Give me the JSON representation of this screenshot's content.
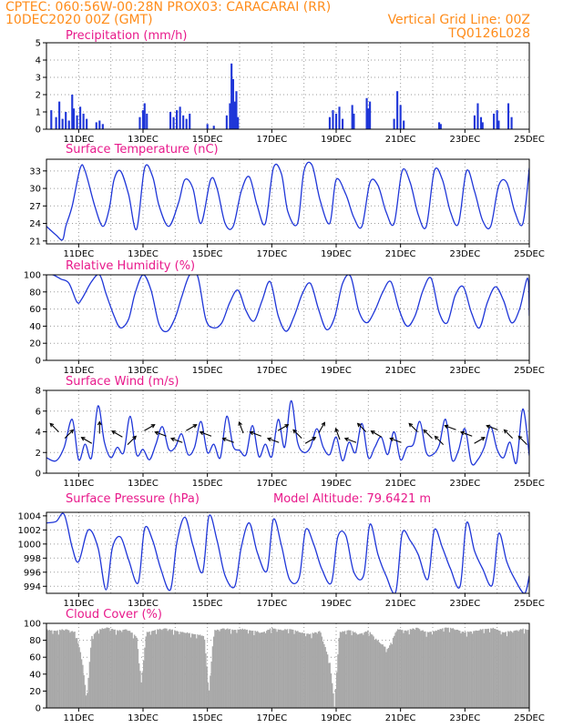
{
  "header": {
    "line1": "CPTEC:   060:56W-00:28N   PROX03: CARACARAI (RR)",
    "line2_left": "10DEC2020 00Z (GMT)",
    "line2_right": "Vertical Grid Line: 00Z",
    "line3_right": "TQ0126L028"
  },
  "colors": {
    "header": "#ff8c1a",
    "title": "#e8198b",
    "line": "#1f36d8",
    "cloud": "#a8a8a8"
  },
  "x_axis_labels": [
    "11DEC",
    "13DEC",
    "15DEC",
    "17DEC",
    "19DEC",
    "21DEC",
    "23DEC",
    "25DEC"
  ],
  "chart_data": [
    {
      "id": "precip",
      "type": "bar",
      "title": "Precipitation (mm/h)",
      "ylim": [
        0,
        5
      ],
      "yticks": [
        "0",
        "1",
        "2",
        "3",
        "4",
        "5"
      ],
      "x_range_days": [
        10,
        25
      ],
      "bars": [
        [
          10.15,
          1.1
        ],
        [
          10.3,
          0.7
        ],
        [
          10.4,
          1.6
        ],
        [
          10.5,
          0.6
        ],
        [
          10.6,
          1.0
        ],
        [
          10.7,
          0.5
        ],
        [
          10.8,
          2.0
        ],
        [
          10.85,
          1.2
        ],
        [
          10.95,
          0.8
        ],
        [
          11.05,
          1.3
        ],
        [
          11.15,
          0.9
        ],
        [
          11.25,
          0.6
        ],
        [
          11.55,
          0.4
        ],
        [
          11.65,
          0.5
        ],
        [
          11.75,
          0.3
        ],
        [
          12.9,
          0.7
        ],
        [
          13.0,
          1.1
        ],
        [
          13.05,
          1.5
        ],
        [
          13.12,
          0.9
        ],
        [
          13.85,
          1.0
        ],
        [
          13.95,
          0.7
        ],
        [
          14.05,
          1.1
        ],
        [
          14.15,
          1.3
        ],
        [
          14.25,
          0.8
        ],
        [
          14.35,
          0.6
        ],
        [
          14.45,
          0.9
        ],
        [
          15.0,
          0.3
        ],
        [
          15.2,
          0.2
        ],
        [
          15.6,
          0.8
        ],
        [
          15.7,
          1.5
        ],
        [
          15.75,
          3.8
        ],
        [
          15.8,
          2.9
        ],
        [
          15.85,
          1.6
        ],
        [
          15.9,
          2.2
        ],
        [
          15.95,
          0.7
        ],
        [
          18.8,
          0.7
        ],
        [
          18.9,
          1.1
        ],
        [
          19.0,
          0.9
        ],
        [
          19.1,
          1.3
        ],
        [
          19.2,
          0.6
        ],
        [
          19.5,
          1.4
        ],
        [
          19.55,
          0.9
        ],
        [
          19.95,
          1.8
        ],
        [
          20.0,
          1.2
        ],
        [
          20.05,
          1.6
        ],
        [
          20.8,
          0.6
        ],
        [
          20.9,
          2.2
        ],
        [
          21.0,
          1.4
        ],
        [
          21.1,
          0.5
        ],
        [
          22.2,
          0.4
        ],
        [
          22.25,
          0.3
        ],
        [
          23.3,
          0.8
        ],
        [
          23.4,
          1.5
        ],
        [
          23.5,
          0.7
        ],
        [
          23.55,
          0.4
        ],
        [
          23.9,
          0.9
        ],
        [
          24.0,
          1.1
        ],
        [
          24.05,
          0.5
        ],
        [
          24.35,
          1.5
        ],
        [
          24.45,
          0.7
        ]
      ]
    },
    {
      "id": "temp",
      "type": "line",
      "title": "Surface Temperature (nC)",
      "ylim": [
        20.5,
        35
      ],
      "yticks": [
        21,
        24,
        27,
        30,
        33
      ],
      "x_range_days": [
        10,
        25
      ],
      "x": [
        10.0,
        10.3,
        10.5,
        10.6,
        10.8,
        11.05,
        11.2,
        11.5,
        11.75,
        11.95,
        12.1,
        12.3,
        12.55,
        12.8,
        13.05,
        13.3,
        13.5,
        13.8,
        14.1,
        14.3,
        14.55,
        14.8,
        15.1,
        15.3,
        15.55,
        15.8,
        16.05,
        16.3,
        16.55,
        16.8,
        17.05,
        17.3,
        17.5,
        17.8,
        18.0,
        18.25,
        18.5,
        18.8,
        19.0,
        19.3,
        19.55,
        19.8,
        20.05,
        20.3,
        20.55,
        20.8,
        21.05,
        21.3,
        21.55,
        21.8,
        22.05,
        22.3,
        22.55,
        22.8,
        23.05,
        23.3,
        23.55,
        23.8,
        24.05,
        24.3,
        24.55,
        24.8,
        25.0
      ],
      "y": [
        23.5,
        22.0,
        21.2,
        23.5,
        27.0,
        33.5,
        33.0,
        27.0,
        23.5,
        26.5,
        31.5,
        33.0,
        29.0,
        23.0,
        33.5,
        32.0,
        27.0,
        23.5,
        27.5,
        31.5,
        30.0,
        24.0,
        31.5,
        30.0,
        24.0,
        23.5,
        29.5,
        32.0,
        27.0,
        24.0,
        33.5,
        32.5,
        26.0,
        24.0,
        33.0,
        34.0,
        28.0,
        24.0,
        31.5,
        29.0,
        25.0,
        23.5,
        31.0,
        30.5,
        26.0,
        24.0,
        33.0,
        31.0,
        25.5,
        23.5,
        33.0,
        31.5,
        26.0,
        24.0,
        33.0,
        29.5,
        24.5,
        23.5,
        30.5,
        31.0,
        26.0,
        24.0,
        33.5
      ]
    },
    {
      "id": "rh",
      "type": "line",
      "title": "Relative Humidity (%)",
      "ylim": [
        0,
        100
      ],
      "yticks": [
        0,
        20,
        40,
        60,
        80,
        100
      ],
      "x_range_days": [
        10,
        25
      ],
      "x": [
        10.0,
        10.2,
        10.45,
        10.7,
        10.95,
        11.1,
        11.4,
        11.65,
        11.85,
        12.1,
        12.3,
        12.55,
        12.75,
        13.0,
        13.25,
        13.5,
        13.75,
        14.0,
        14.2,
        14.45,
        14.7,
        14.95,
        15.2,
        15.45,
        15.7,
        15.95,
        16.2,
        16.45,
        16.7,
        16.95,
        17.2,
        17.45,
        17.7,
        17.95,
        18.2,
        18.45,
        18.7,
        18.95,
        19.2,
        19.45,
        19.7,
        19.95,
        20.2,
        20.45,
        20.7,
        20.95,
        21.2,
        21.45,
        21.7,
        21.95,
        22.2,
        22.45,
        22.7,
        22.95,
        23.2,
        23.45,
        23.7,
        23.95,
        24.2,
        24.45,
        24.7,
        24.95,
        25.0
      ],
      "y": [
        100,
        100,
        95,
        90,
        68,
        72,
        92,
        100,
        78,
        52,
        38,
        48,
        78,
        100,
        82,
        42,
        34,
        50,
        74,
        100,
        98,
        48,
        38,
        44,
        68,
        82,
        58,
        46,
        70,
        92,
        52,
        34,
        52,
        78,
        90,
        60,
        36,
        50,
        90,
        98,
        58,
        44,
        58,
        80,
        92,
        60,
        40,
        52,
        82,
        96,
        56,
        44,
        76,
        86,
        56,
        38,
        68,
        86,
        70,
        44,
        60,
        96,
        52
      ]
    },
    {
      "id": "wind",
      "type": "line",
      "title": "Surface Wind (m/s)",
      "ylim": [
        0,
        8
      ],
      "yticks": [
        0,
        2,
        4,
        6,
        8
      ],
      "x_range_days": [
        10,
        25
      ],
      "x": [
        10.0,
        10.3,
        10.55,
        10.8,
        11.0,
        11.2,
        11.4,
        11.6,
        11.8,
        12.0,
        12.2,
        12.4,
        12.6,
        12.8,
        13.0,
        13.2,
        13.4,
        13.6,
        13.8,
        14.0,
        14.2,
        14.4,
        14.6,
        14.8,
        15.0,
        15.2,
        15.4,
        15.6,
        15.8,
        16.0,
        16.2,
        16.4,
        16.6,
        16.8,
        17.0,
        17.2,
        17.4,
        17.6,
        17.8,
        18.0,
        18.2,
        18.4,
        18.6,
        18.8,
        19.0,
        19.2,
        19.4,
        19.6,
        19.8,
        20.0,
        20.2,
        20.4,
        20.6,
        20.8,
        21.0,
        21.2,
        21.4,
        21.6,
        21.8,
        22.0,
        22.2,
        22.4,
        22.6,
        22.8,
        23.0,
        23.2,
        23.4,
        23.6,
        23.8,
        24.0,
        24.2,
        24.4,
        24.6,
        24.8,
        25.0
      ],
      "y": [
        1.5,
        1.2,
        2.5,
        5.2,
        1.3,
        2.8,
        1.5,
        6.5,
        3.0,
        1.5,
        2.5,
        2.0,
        5.5,
        1.8,
        2.3,
        1.3,
        2.8,
        4.5,
        2.3,
        2.5,
        3.8,
        1.8,
        2.5,
        5.0,
        2.0,
        2.8,
        1.5,
        5.5,
        2.6,
        2.2,
        1.8,
        4.6,
        1.6,
        2.8,
        1.6,
        5.2,
        2.5,
        7.0,
        3.0,
        2.0,
        2.5,
        4.3,
        2.5,
        1.8,
        3.5,
        1.2,
        3.0,
        2.0,
        4.8,
        1.5,
        2.5,
        3.5,
        1.8,
        4.0,
        1.3,
        2.5,
        2.8,
        5.0,
        2.0,
        1.8,
        2.7,
        5.2,
        1.3,
        2.2,
        4.3,
        1.0,
        1.3,
        2.5,
        4.5,
        2.3,
        1.5,
        3.0,
        1.0,
        6.2,
        1.7
      ]
    },
    {
      "id": "pres",
      "type": "line",
      "title": "Surface Pressure (hPa)",
      "annotation": "Model Altitude: 79.6421  m",
      "ylim": [
        993,
        1004.5
      ],
      "yticks": [
        994,
        996,
        998,
        1000,
        1002,
        1004
      ],
      "x_range_days": [
        10,
        25
      ],
      "x": [
        10.0,
        10.3,
        10.55,
        10.8,
        11.0,
        11.3,
        11.6,
        11.85,
        12.05,
        12.3,
        12.55,
        12.85,
        13.05,
        13.3,
        13.55,
        13.85,
        14.05,
        14.3,
        14.55,
        14.85,
        15.05,
        15.3,
        15.55,
        15.85,
        16.05,
        16.3,
        16.55,
        16.85,
        17.05,
        17.3,
        17.55,
        17.85,
        18.05,
        18.3,
        18.55,
        18.85,
        19.05,
        19.3,
        19.55,
        19.85,
        20.05,
        20.3,
        20.55,
        20.85,
        21.05,
        21.3,
        21.55,
        21.85,
        22.05,
        22.3,
        22.55,
        22.85,
        23.05,
        23.3,
        23.55,
        23.85,
        24.05,
        24.3,
        24.55,
        24.85,
        25.0
      ],
      "y": [
        1003.0,
        1003.2,
        1004.2,
        999.5,
        997.5,
        1002.0,
        999.5,
        993.5,
        999.5,
        1001.0,
        997.8,
        994.5,
        1002.2,
        1000.5,
        996.5,
        993.5,
        1000.2,
        1003.8,
        999.8,
        996.0,
        1004.0,
        1000.5,
        995.5,
        994.0,
        999.5,
        1003.0,
        998.8,
        996.2,
        1003.5,
        999.8,
        995.0,
        995.2,
        1002.0,
        1000.0,
        996.5,
        994.5,
        1001.0,
        1001.2,
        996.0,
        995.5,
        1002.8,
        998.5,
        995.5,
        993.2,
        1001.5,
        1000.5,
        998.5,
        995.0,
        1002.0,
        999.5,
        996.5,
        994.0,
        1003.0,
        999.0,
        996.5,
        994.2,
        1001.5,
        997.5,
        995.0,
        993.0,
        995.5
      ]
    },
    {
      "id": "cloud",
      "type": "area",
      "title": "Cloud Cover (%)",
      "ylim": [
        0,
        100
      ],
      "yticks": [
        0,
        20,
        40,
        60,
        80,
        100
      ],
      "x_range_days": [
        10,
        25
      ],
      "x": [
        10.0,
        10.3,
        10.6,
        10.9,
        11.1,
        11.25,
        11.4,
        11.6,
        11.9,
        12.2,
        12.5,
        12.8,
        12.95,
        13.1,
        13.4,
        13.7,
        14.0,
        14.3,
        14.6,
        14.9,
        15.05,
        15.2,
        15.5,
        15.8,
        16.1,
        16.4,
        16.7,
        17.0,
        17.3,
        17.6,
        17.9,
        18.2,
        18.5,
        18.8,
        18.95,
        19.1,
        19.4,
        19.7,
        20.0,
        20.3,
        20.6,
        20.9,
        21.2,
        21.5,
        21.8,
        22.1,
        22.4,
        22.7,
        23.0,
        23.3,
        23.6,
        23.9,
        24.2,
        24.5,
        24.8,
        25.0
      ],
      "y": [
        93,
        92,
        94,
        90,
        60,
        10,
        85,
        93,
        96,
        92,
        94,
        85,
        30,
        90,
        93,
        95,
        92,
        90,
        88,
        86,
        20,
        92,
        95,
        93,
        94,
        92,
        90,
        95,
        93,
        94,
        90,
        88,
        92,
        55,
        5,
        90,
        93,
        88,
        92,
        80,
        70,
        94,
        92,
        96,
        90,
        92,
        96,
        94,
        90,
        92,
        94,
        95,
        90,
        92,
        94,
        93
      ]
    }
  ],
  "wind_vectors": [
    [
      10.25,
      225
    ],
    [
      10.7,
      315
    ],
    [
      11.25,
      210
    ],
    [
      11.65,
      270
    ],
    [
      12.2,
      210
    ],
    [
      12.65,
      315
    ],
    [
      13.2,
      330
    ],
    [
      13.55,
      200
    ],
    [
      14.05,
      200
    ],
    [
      14.5,
      330
    ],
    [
      14.95,
      200
    ],
    [
      15.65,
      200
    ],
    [
      16.05,
      250
    ],
    [
      16.5,
      200
    ],
    [
      17.05,
      200
    ],
    [
      17.35,
      330
    ],
    [
      17.8,
      225
    ],
    [
      18.2,
      330
    ],
    [
      18.55,
      300
    ],
    [
      19.05,
      250
    ],
    [
      19.45,
      200
    ],
    [
      19.8,
      225
    ],
    [
      20.25,
      210
    ],
    [
      20.85,
      200
    ],
    [
      21.4,
      225
    ],
    [
      21.85,
      225
    ],
    [
      22.2,
      225
    ],
    [
      22.55,
      200
    ],
    [
      23.05,
      200
    ],
    [
      23.45,
      330
    ],
    [
      23.85,
      200
    ],
    [
      24.35,
      225
    ],
    [
      24.8,
      225
    ]
  ]
}
